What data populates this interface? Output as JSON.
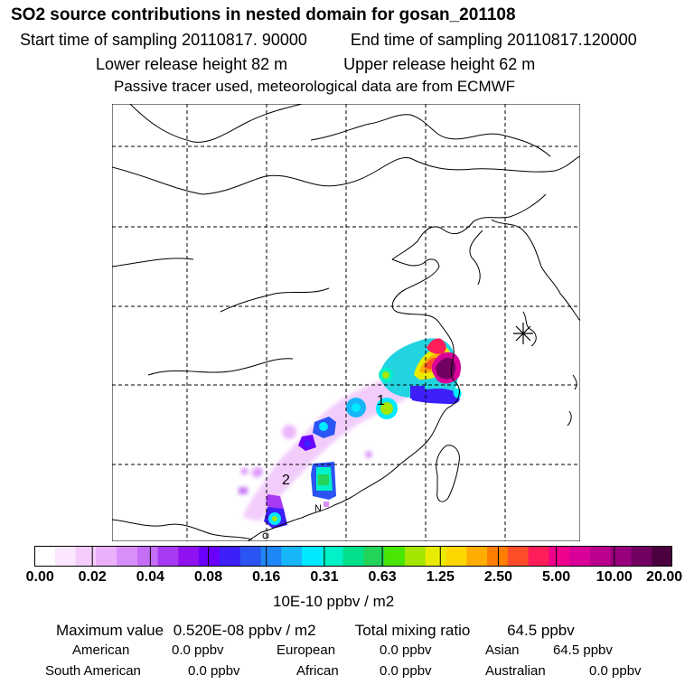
{
  "header": {
    "title": "SO2 source contributions in nested domain for gosan_201108",
    "start_label": "Start time of sampling 20110817. 90000",
    "end_label": "End time of sampling 20110817.120000",
    "lower_label": "Lower release height   82 m",
    "upper_label": "Upper release height   62 m",
    "passive_label": "Passive tracer used, meteorological data are from ECMWF"
  },
  "map": {
    "markers": [
      "1",
      "2"
    ],
    "site_label": "N"
  },
  "colorbar": {
    "colors": [
      "#ffffff",
      "#fbe7ff",
      "#f4cdfd",
      "#eab0fb",
      "#d98ff9",
      "#c46df6",
      "#a93af3",
      "#8f10f0",
      "#6a00ff",
      "#3c1ff9",
      "#2a54f3",
      "#1f86f7",
      "#17b6f6",
      "#00e9ff",
      "#00f2c6",
      "#00e08a",
      "#22d45a",
      "#48e600",
      "#a4e600",
      "#e9ec00",
      "#ffd700",
      "#ffad00",
      "#ff7d00",
      "#ff4d2a",
      "#ff1d5a",
      "#f0008c",
      "#d9009a",
      "#bb0090",
      "#98007e",
      "#720060",
      "#4b0040"
    ],
    "labels": [
      "0.00",
      "0.02",
      "0.04",
      "0.08",
      "0.16",
      "0.31",
      "0.63",
      "1.25",
      "2.50",
      "5.00",
      "10.00",
      "20.00"
    ],
    "unit": "10E-10 ppbv / m2"
  },
  "summary": {
    "max_label": "Maximum value",
    "max_value": "0.520E-08 ppbv / m2",
    "total_label": "Total mixing ratio",
    "total_value": "64.5 ppbv"
  },
  "regions": [
    {
      "name": "American",
      "value": "0.0 ppbv"
    },
    {
      "name": "European",
      "value": "0.0 ppbv"
    },
    {
      "name": "Asian",
      "value": "64.5 ppbv"
    },
    {
      "name": "South American",
      "value": "0.0 ppbv"
    },
    {
      "name": "African",
      "value": "0.0 ppbv"
    },
    {
      "name": "Australian",
      "value": "0.0 ppbv"
    }
  ]
}
